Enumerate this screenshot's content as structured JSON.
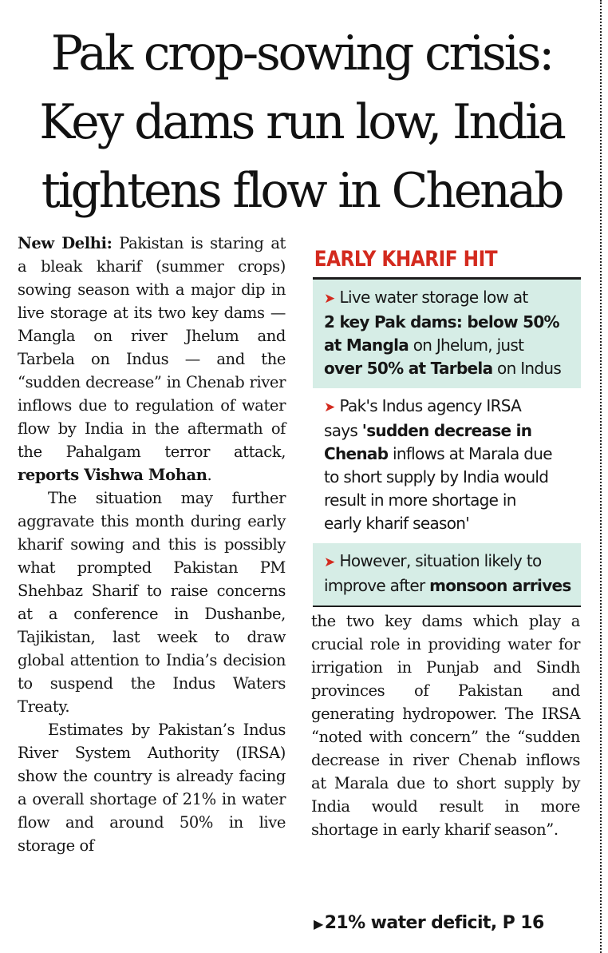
{
  "headline": [
    "Pak crop-sowing crisis:",
    "Key dams run low, India",
    "tightens flow in Chenab"
  ],
  "sidebar": {
    "title": "EARLY KHARIF HIT",
    "item1": {
      "t1": "Live water storage low at",
      "b1": "2 key Pak dams: below 50%",
      "b2": "at Mangla",
      "t2": " on Jhelum, just",
      "b3": "over 50% at Tarbela",
      "t3": " on Indus"
    },
    "item2": {
      "t1": "Pak's Indus agency IRSA",
      "t2": "says ",
      "b1": "'sudden decrease in",
      "b2": "Chenab",
      "t3": " inflows at Marala due",
      "t4": "to short supply by India would",
      "t5": "result in more shortage in",
      "t6": "early kharif season'"
    },
    "item3": {
      "t1": "However, situation likely to",
      "t2": "improve after ",
      "b1": "monsoon arrives"
    }
  },
  "article": {
    "p1_dateline": "New Delhi:",
    "p1_text": " Pakistan is staring at a bleak kharif (summer crops) sowing season with a major dip in live storage at its two key dams — Mangla on river Jhelum and Tarbela on Indus — and the “sudden decrease” in Chenab river inflows due to regulation of water flow by India in the aftermath of the Pahalgam terror attack, ",
    "p1_reports": "reports Vishwa Mohan",
    "p1_end": ".",
    "p2": "The situation may further aggravate this month during early kharif sowing and this is possibly what prompted Pakistan PM Shehbaz Sharif to raise concerns at a conference in Dushanbe, Tajikistan, last week to draw global attention to India’s decision to suspend the Indus Waters Treaty.",
    "p3": "Estimates by Pakistan’s Indus River System Authority (IRSA) show the country is already facing a overall shortage of 21% in water flow and around 50% in live storage of",
    "p4": "the two key dams which play a crucial role in providing water for irrigation in Punjab and Sindh provinces of Pakistan and generating hydropower. The IRSA “noted with concern” the “sudden decrease in river Chenab inflows at Marala due to short supply by India would result in more shortage in early kharif season”.",
    "reference": "21% water deficit, P 16"
  },
  "colors": {
    "accent_red": "#d32a1e",
    "box_shade": "#d6ede6"
  }
}
